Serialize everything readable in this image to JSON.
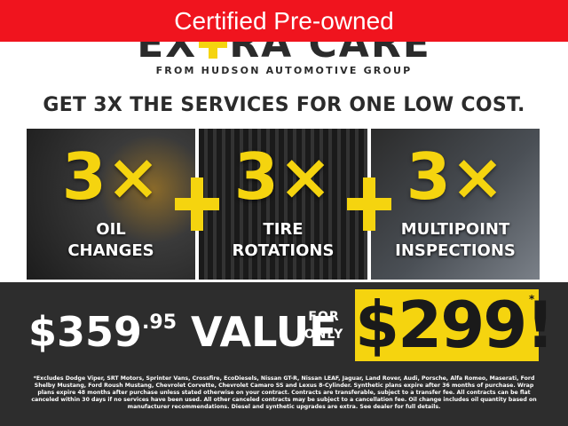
{
  "banner": "Certified Pre-owned",
  "logo": {
    "left": "EX",
    "right": "RA CARE",
    "subtitle": "FROM HUDSON AUTOMOTIVE GROUP"
  },
  "headline": "GET 3X THE SERVICES FOR ONE LOW COST.",
  "panels": [
    {
      "multiplier": "3×",
      "label_lines": [
        "OIL",
        "CHANGES"
      ]
    },
    {
      "multiplier": "3×",
      "label_lines": [
        "TIRE",
        "ROTATIONS"
      ]
    },
    {
      "multiplier": "3×",
      "label_lines": [
        "MULTIPOINT",
        "INSPECTIONS"
      ]
    }
  ],
  "value": {
    "dollars": "$359",
    "cents": ".95",
    "word": "VALUE"
  },
  "for_only": [
    "FOR",
    "ONLY"
  ],
  "price": "$299!",
  "asterisk": "*",
  "fine_print": "*Excludes Dodge Viper, SRT Motors, Sprinter Vans, Crossfire, EcoDiesels, Nissan GT-R, Nissan LEAF, Jaguar, Land Rover, Audi, Porsche, Alfa Romeo, Maserati, Ford Shelby Mustang, Ford Roush Mustang, Chevrolet Corvette, Chevrolet Camaro SS and Lexus 8-Cylinder. Synthetic plans expire after 36 months of purchase. Wrap plans expire 48 months after purchase unless stated otherwise on your contract. Contracts are transferable, subject to a transfer fee. All contracts can be flat canceled within 30 days if no services have been used. All other canceled contracts may be subject to a cancellation fee. Oil change includes oil quantity based on manufacturer recommendations. Diesel and synthetic upgrades are extra. See dealer for full details."
}
